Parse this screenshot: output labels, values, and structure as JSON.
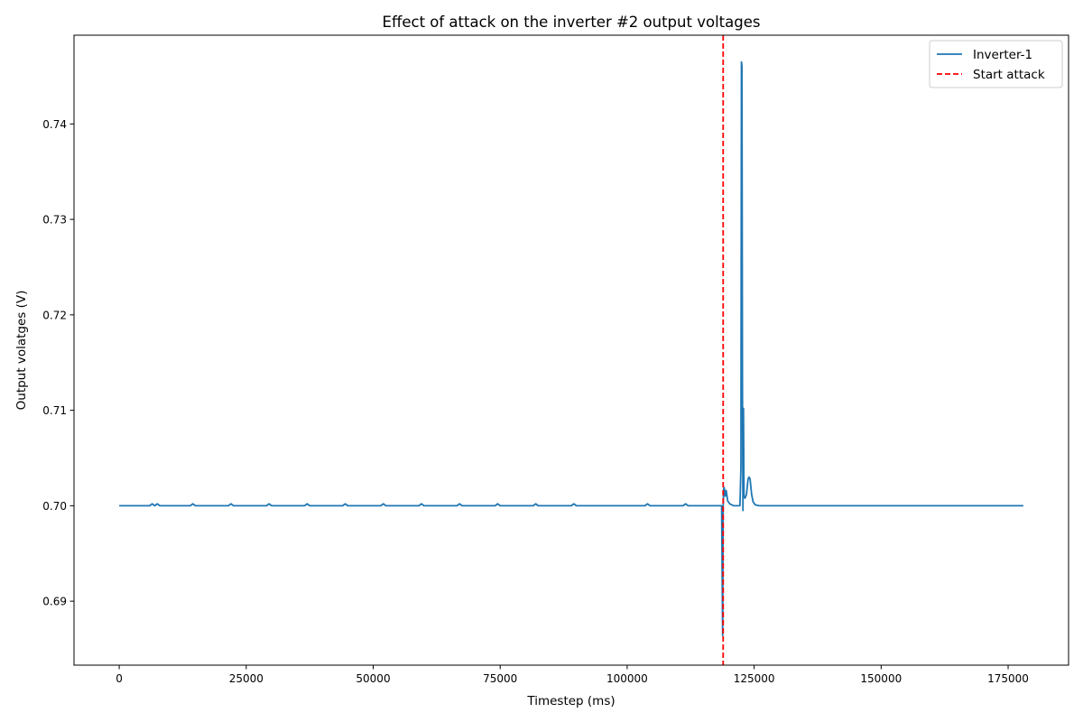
{
  "chart_data": {
    "type": "line",
    "title": "Effect of attack on the inverter #2 output voltages",
    "xlabel": "Timestep (ms)",
    "ylabel": "Output volatges (V)",
    "xlim": [
      -8900,
      186900
    ],
    "ylim": [
      0.6833,
      0.7493
    ],
    "xticks": [
      0,
      25000,
      50000,
      75000,
      100000,
      125000,
      150000,
      175000
    ],
    "xtick_labels": [
      "0",
      "25000",
      "50000",
      "75000",
      "100000",
      "125000",
      "150000",
      "175000"
    ],
    "yticks": [
      0.69,
      0.7,
      0.71,
      0.72,
      0.73,
      0.74
    ],
    "ytick_labels": [
      "0.69",
      "0.70",
      "0.71",
      "0.72",
      "0.73",
      "0.74"
    ],
    "grid": false,
    "legend_position": "top-right",
    "series": [
      {
        "name": "Inverter-1",
        "color": "#1f77b4",
        "style": "solid",
        "x": [
          0,
          6000,
          6500,
          7000,
          7500,
          8000,
          14000,
          14500,
          15000,
          21500,
          22000,
          22500,
          29000,
          29500,
          30000,
          36500,
          37000,
          37500,
          44000,
          44500,
          45000,
          51500,
          52000,
          52500,
          59000,
          59500,
          60000,
          66500,
          67000,
          67500,
          74000,
          74500,
          75000,
          81500,
          82000,
          82500,
          89000,
          89500,
          90000,
          103500,
          104000,
          104500,
          111000,
          111500,
          112000,
          118600,
          118800,
          118900,
          119000,
          119100,
          119300,
          119500,
          119800,
          120200,
          121000,
          122200,
          122400,
          122500,
          122600,
          122700,
          122800,
          122900,
          123000,
          123200,
          123500,
          123800,
          124000,
          124200,
          124500,
          124800,
          125200,
          126000,
          128000,
          150000,
          178000
        ],
        "y": [
          0.7,
          0.7,
          0.7002,
          0.7,
          0.7002,
          0.7,
          0.7,
          0.7002,
          0.7,
          0.7,
          0.7002,
          0.7,
          0.7,
          0.7002,
          0.7,
          0.7,
          0.7002,
          0.7,
          0.7,
          0.7002,
          0.7,
          0.7,
          0.7002,
          0.7,
          0.7,
          0.7002,
          0.7,
          0.7,
          0.7002,
          0.7,
          0.7,
          0.7002,
          0.7,
          0.7,
          0.7002,
          0.7,
          0.7,
          0.7002,
          0.7,
          0.7,
          0.7002,
          0.7,
          0.7,
          0.7002,
          0.7,
          0.7,
          0.6864,
          0.7,
          0.7018,
          0.7019,
          0.701,
          0.7016,
          0.7005,
          0.7002,
          0.7,
          0.7,
          0.704,
          0.7465,
          0.746,
          0.712,
          0.6995,
          0.7102,
          0.701,
          0.7008,
          0.7012,
          0.7028,
          0.703,
          0.7028,
          0.7012,
          0.7004,
          0.7001,
          0.7,
          0.7,
          0.7,
          0.7
        ]
      },
      {
        "name": "Start attack",
        "color": "#ff0000",
        "style": "dashed",
        "type": "vline",
        "x": 118900
      }
    ]
  }
}
